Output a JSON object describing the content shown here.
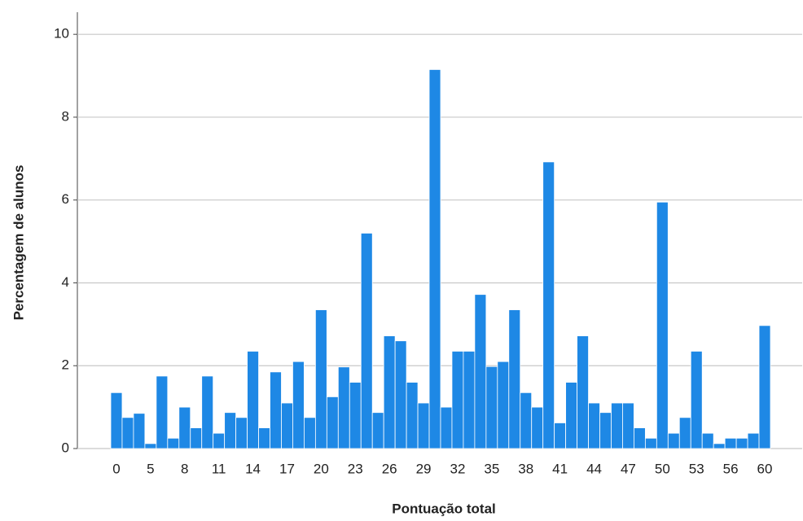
{
  "chart_data": {
    "type": "bar",
    "xlabel": "Pontuação total",
    "ylabel": "Percentagem de alunos",
    "categories": [
      "0",
      null,
      null,
      "5",
      null,
      null,
      "8",
      null,
      null,
      "11",
      null,
      null,
      "14",
      null,
      null,
      "17",
      null,
      null,
      "20",
      null,
      null,
      "23",
      null,
      null,
      "26",
      null,
      null,
      "29",
      null,
      null,
      "32",
      null,
      null,
      "35",
      null,
      null,
      "38",
      null,
      null,
      "41",
      null,
      null,
      "44",
      null,
      null,
      "47",
      null,
      null,
      "50",
      null,
      null,
      "53",
      null,
      null,
      "56",
      null,
      null,
      "60"
    ],
    "values": [
      1.35,
      0.75,
      0.85,
      0.12,
      1.75,
      0.25,
      1.0,
      0.5,
      1.75,
      0.37,
      0.87,
      0.75,
      2.35,
      0.5,
      1.85,
      1.1,
      2.1,
      0.75,
      3.35,
      1.25,
      1.97,
      1.6,
      5.2,
      0.87,
      2.72,
      2.6,
      1.6,
      1.1,
      9.15,
      1.0,
      2.35,
      2.35,
      3.72,
      1.98,
      2.1,
      3.35,
      1.35,
      1.0,
      6.92,
      0.62,
      1.6,
      2.72,
      1.1,
      0.87,
      1.1,
      1.1,
      0.5,
      0.25,
      5.95,
      0.37,
      0.75,
      2.35,
      0.37,
      0.12,
      0.25,
      0.25,
      0.37,
      2.97
    ],
    "color": "#1e88e5",
    "ylim": [
      0,
      10.2
    ],
    "yticks": [
      0,
      2,
      4,
      6,
      8,
      10
    ],
    "grid": true
  }
}
